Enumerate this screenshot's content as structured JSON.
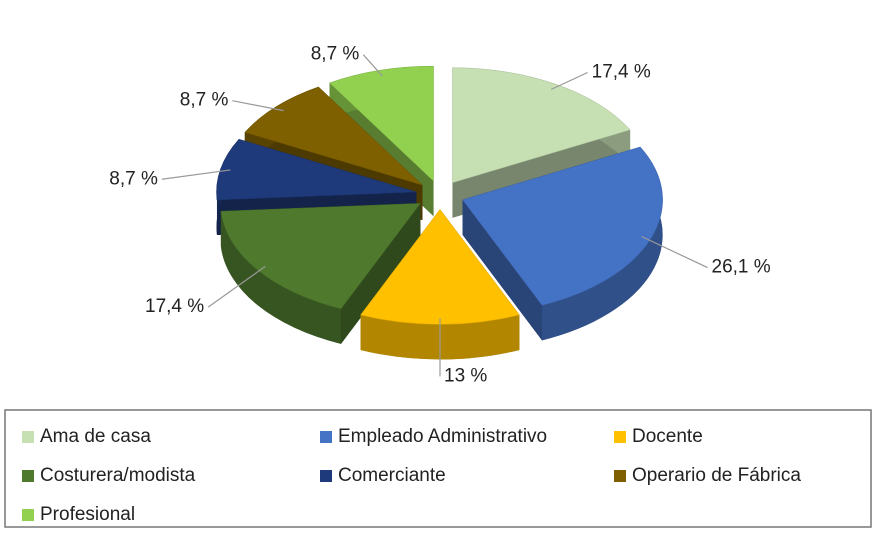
{
  "chart_data": {
    "type": "pie",
    "categories": [
      "Ama de casa",
      "Empleado Administrativo",
      "Docente",
      "Costurera/modista",
      "Comerciante",
      "Operario de Fábrica",
      "Profesional"
    ],
    "values": [
      17.4,
      26.1,
      13,
      17.4,
      8.7,
      8.7,
      8.7
    ],
    "value_labels": [
      "17,4 %",
      "26,1 %",
      "13 %",
      "17,4 %",
      "8,7 %",
      "8,7 %",
      "8,7 %"
    ],
    "colors": [
      "#c6e0b4",
      "#4472c4",
      "#ffc000",
      "#4f7a2e",
      "#1f3a7a",
      "#7f6000",
      "#92d050"
    ],
    "legend": "bottom"
  }
}
